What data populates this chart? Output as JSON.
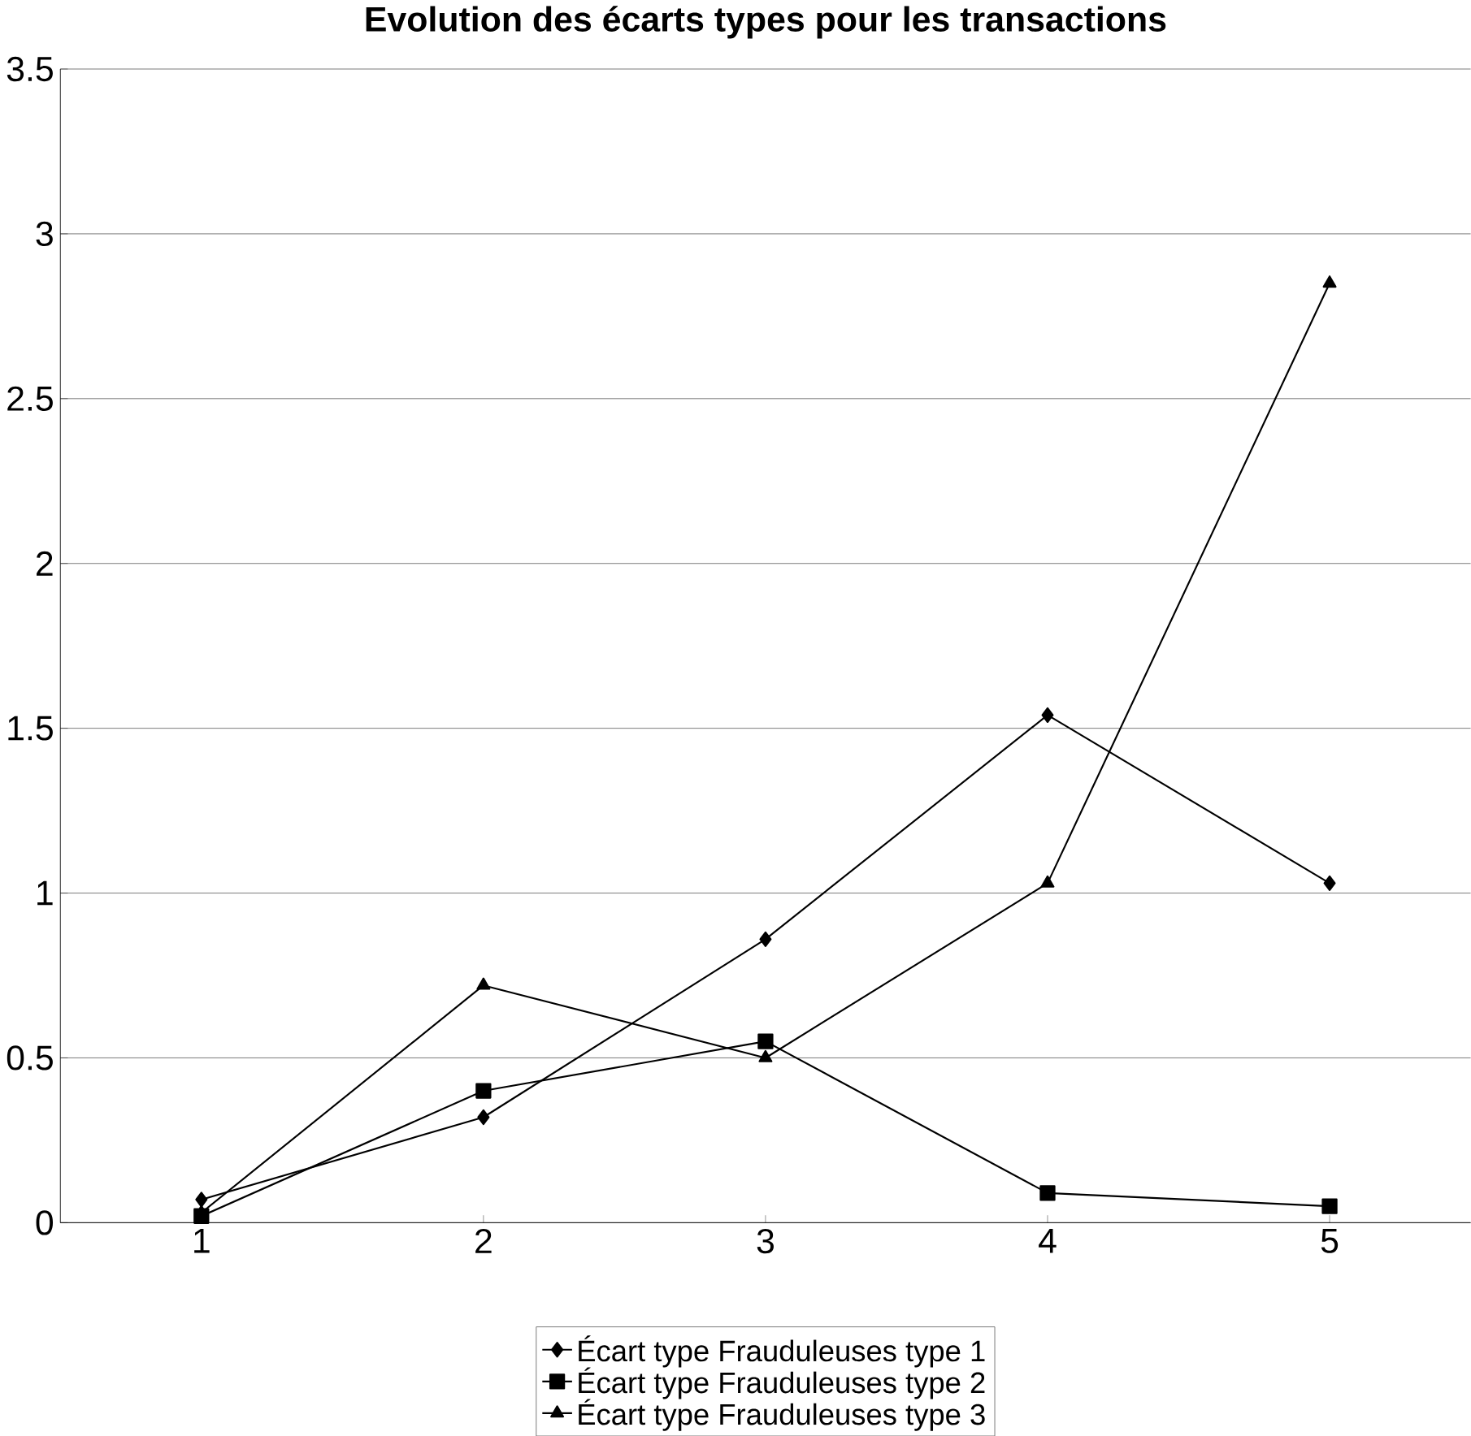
{
  "chart_data": {
    "type": "line",
    "title": "Evolution des écarts types pour les transactions",
    "categories": [
      "1",
      "2",
      "3",
      "4",
      "5"
    ],
    "series": [
      {
        "name": "Écart type Frauduleuses type 1",
        "color": "#000000",
        "marker": "diamond",
        "values": [
          0.07,
          0.32,
          0.86,
          1.54,
          1.03
        ]
      },
      {
        "name": "Écart type Frauduleuses type 2",
        "color": "#000000",
        "marker": "square",
        "values": [
          0.02,
          0.4,
          0.55,
          0.09,
          0.05
        ]
      },
      {
        "name": "Écart type Frauduleuses type 3",
        "color": "#000000",
        "marker": "triangle",
        "values": [
          0.03,
          0.72,
          0.5,
          1.03,
          2.85
        ]
      }
    ],
    "ylim": [
      0,
      3.5
    ],
    "yticks": [
      0,
      0.5,
      1,
      1.5,
      2,
      2.5,
      3,
      3.5
    ],
    "grid": "y",
    "legend": "bottom",
    "line_style": "solid"
  }
}
